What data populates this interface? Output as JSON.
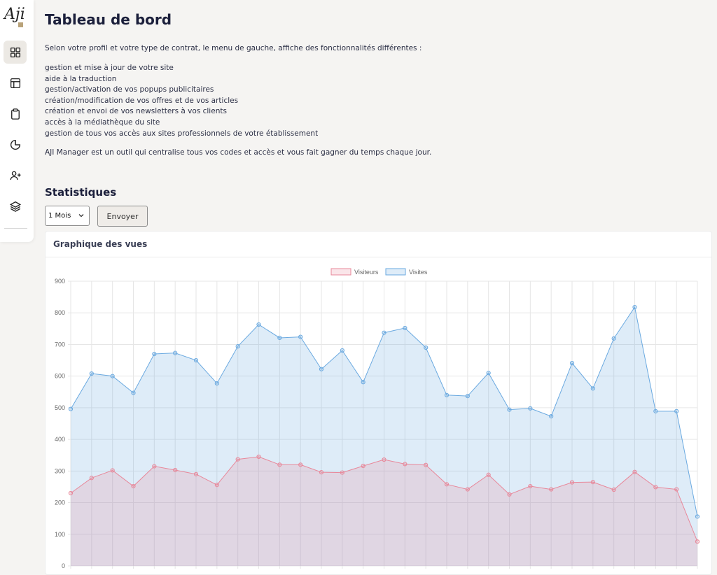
{
  "sidebar": {
    "logo_text": "Aji",
    "items": [
      {
        "icon": "dashboard-grid-icon"
      },
      {
        "icon": "layout-icon"
      },
      {
        "icon": "clipboard-icon"
      },
      {
        "icon": "pie-chart-icon"
      },
      {
        "icon": "user-plus-icon"
      },
      {
        "icon": "layers-icon"
      }
    ]
  },
  "page": {
    "title": "Tableau de bord",
    "intro": "Selon votre profil et votre type de contrat, le menu de gauche, affiche des fonctionnalités différentes :",
    "features": [
      "gestion et mise à jour de votre site",
      "aide à la traduction",
      "gestion/activation de vos popups publicitaires",
      "création/modification de vos offres et de vos articles",
      "création et envoi de vos newsletters à vos clients",
      "accès à la médiathèque du site",
      "gestion de tous vos accès aux sites professionnels de votre établissement"
    ],
    "outro": "AJI Manager est un outil qui centralise tous vos codes et accès et vous fait gagner du temps chaque jour."
  },
  "stats": {
    "title": "Statistiques",
    "period_value": "1 Mois",
    "send_label": "Envoyer",
    "card_title": "Graphique des vues"
  },
  "colors": {
    "visitors": "#e8889a",
    "visits": "#6aa9e0"
  },
  "chart_data": {
    "type": "area",
    "ylim": [
      0,
      900
    ],
    "yticks": [
      0,
      100,
      200,
      300,
      400,
      500,
      600,
      700,
      800,
      900
    ],
    "grid": true,
    "legend_position": "top",
    "series": [
      {
        "name": "Visiteurs",
        "values": [
          230,
          278,
          302,
          252,
          315,
          303,
          290,
          256,
          337,
          345,
          320,
          320,
          296,
          295,
          316,
          336,
          322,
          319,
          258,
          242,
          288,
          226,
          252,
          242,
          264,
          265,
          241,
          297,
          249,
          242,
          77
        ]
      },
      {
        "name": "Visites",
        "values": [
          496,
          608,
          600,
          547,
          670,
          673,
          650,
          577,
          694,
          763,
          721,
          724,
          622,
          681,
          581,
          737,
          752,
          690,
          540,
          537,
          610,
          494,
          498,
          473,
          641,
          561,
          719,
          818,
          489,
          489,
          156
        ]
      }
    ]
  }
}
